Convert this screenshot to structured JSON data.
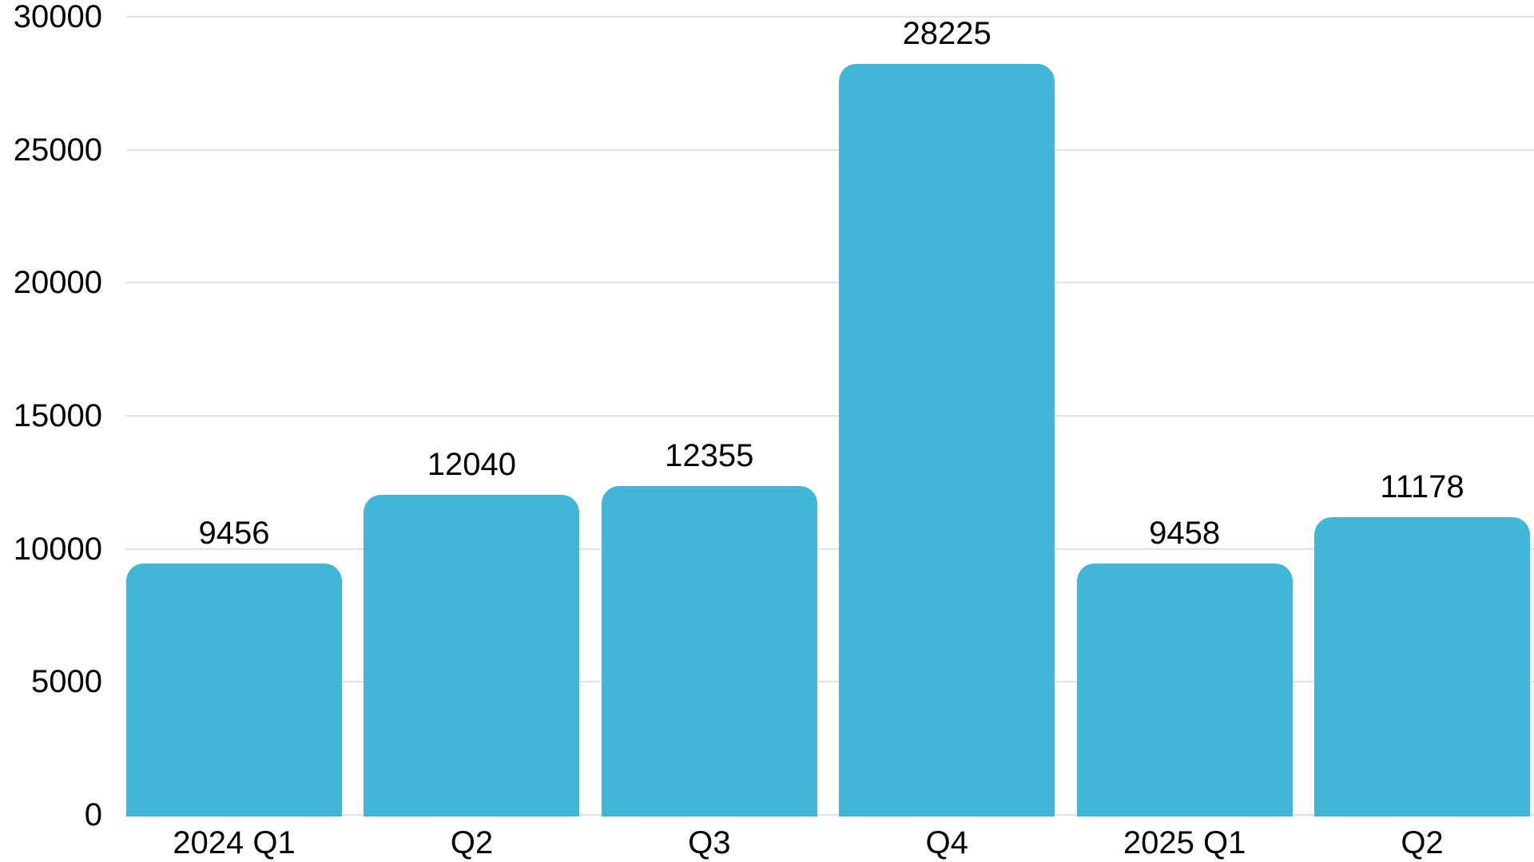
{
  "chart_data": {
    "type": "bar",
    "categories": [
      "2024 Q1",
      "Q2",
      "Q3",
      "Q4",
      "2025 Q1",
      "Q2"
    ],
    "values": [
      9456,
      12040,
      12355,
      28225,
      9458,
      11178
    ],
    "value_labels": [
      "9456",
      "12040",
      "12355",
      "28225",
      "9458",
      "11178"
    ],
    "title": "",
    "xlabel": "",
    "ylabel": "",
    "ylim": [
      0,
      30000
    ],
    "yticks": [
      0,
      5000,
      10000,
      15000,
      20000,
      25000,
      30000
    ],
    "ytick_labels": [
      "0",
      "5000",
      "10000",
      "15000",
      "20000",
      "25000",
      "30000"
    ],
    "grid": "horizontal-only",
    "legend_position": "none",
    "bar_corner": "rounded-top",
    "colors": {
      "bar": "#41b6d6",
      "gridline": "#e2e2e2",
      "text": "#000000",
      "background": "#ffffff"
    }
  }
}
